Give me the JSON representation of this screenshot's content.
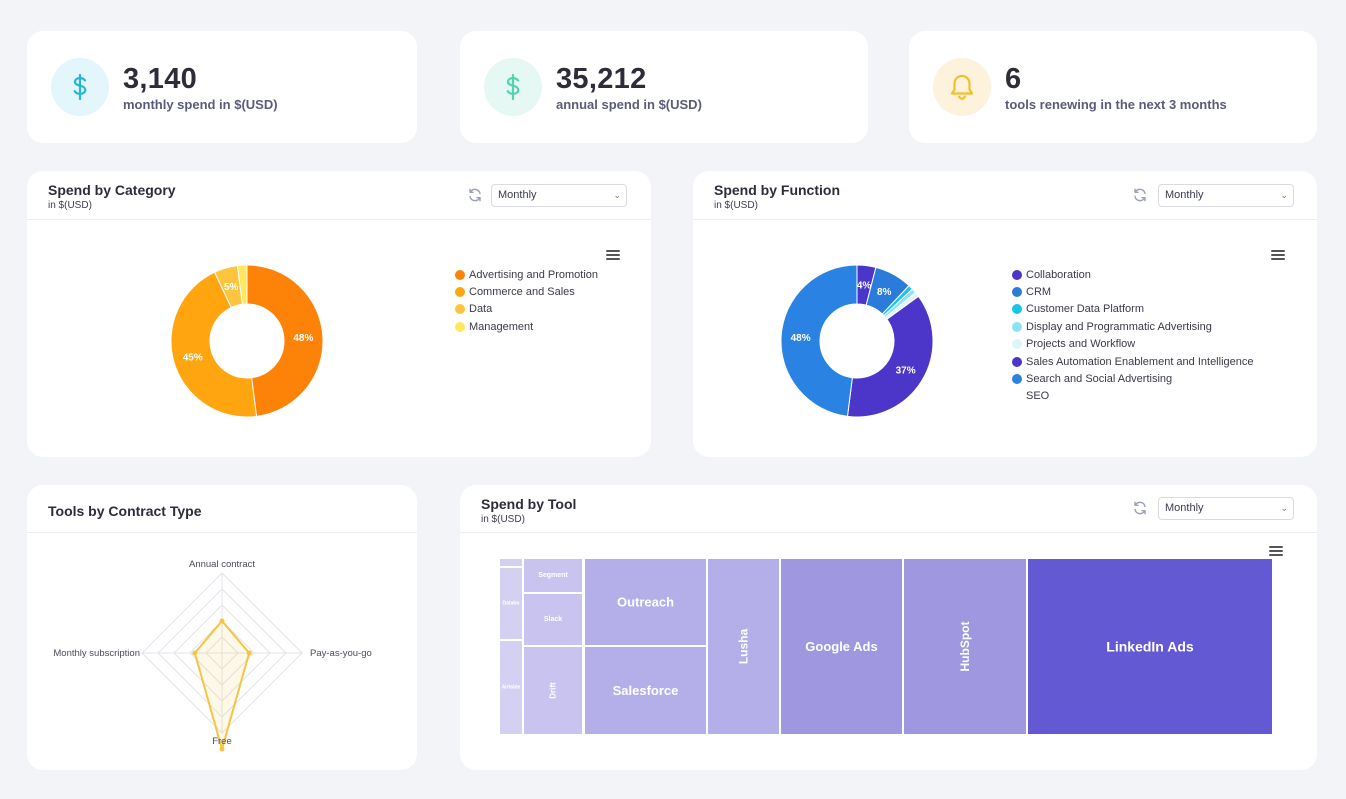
{
  "stats": [
    {
      "value": "3,140",
      "label": "monthly spend in $(USD)",
      "icon": "dollar-icon",
      "color": "#29b6d6",
      "bg": "#e3f6fb"
    },
    {
      "value": "35,212",
      "label": "annual spend in $(USD)",
      "icon": "dollar-icon",
      "color": "#55d2b0",
      "bg": "#e6f8f3"
    },
    {
      "value": "6",
      "label": "tools renewing in the next 3 months",
      "icon": "bell-icon",
      "color": "#f4bf2a",
      "bg": "#fdf3dc"
    }
  ],
  "category_card": {
    "title": "Spend by Category",
    "subtitle": "in $(USD)",
    "period": "Monthly",
    "chart_data": {
      "type": "pie",
      "variant": "donut",
      "slices": [
        {
          "label": "Advertising and Promotion",
          "value": 48,
          "color": "#fd8208",
          "data_label": "48%"
        },
        {
          "label": "Commerce and Sales",
          "value": 45,
          "color": "#ffa510",
          "data_label": "45%"
        },
        {
          "label": "Data",
          "value": 5,
          "color": "#ffc43e",
          "data_label": "5%"
        },
        {
          "label": "Management",
          "value": 2,
          "color": "#ffe85c",
          "data_label": ""
        }
      ]
    }
  },
  "function_card": {
    "title": "Spend by Function",
    "subtitle": "in $(USD)",
    "period": "Monthly",
    "chart_data": {
      "type": "pie",
      "variant": "donut",
      "slices": [
        {
          "label": "Collaboration",
          "value": 4,
          "color": "#4b36c9",
          "data_label": "4%"
        },
        {
          "label": "CRM",
          "value": 8,
          "color": "#2a7bda",
          "data_label": "8%"
        },
        {
          "label": "Customer Data Platform",
          "value": 1,
          "color": "#17c6e8",
          "data_label": ""
        },
        {
          "label": "Display and Programmatic Advertising",
          "value": 1,
          "color": "#8be3f5",
          "data_label": ""
        },
        {
          "label": "Projects and Workflow",
          "value": 1,
          "color": "#dff5fb",
          "data_label": ""
        },
        {
          "label": "Sales Automation Enablement and Intelligence",
          "value": 37,
          "color": "#4b36c9",
          "data_label": "37%"
        },
        {
          "label": "Search and Social Advertising",
          "value": 48,
          "color": "#2a83e2",
          "data_label": "48%"
        },
        {
          "label": "SEO",
          "value": 0,
          "color": "",
          "data_label": ""
        }
      ]
    }
  },
  "contract_card": {
    "title": "Tools by Contract Type",
    "chart_data": {
      "type": "radar",
      "axes": [
        "Annual contract",
        "Pay-as-you-go",
        "Free",
        "Monthly subscription"
      ],
      "values": [
        2,
        1.7,
        6,
        1.7
      ],
      "max": 5,
      "color": "#f4c442"
    }
  },
  "tool_card": {
    "title": "Spend by Tool",
    "subtitle": "in $(USD)",
    "period": "Monthly",
    "chart_data": {
      "type": "treemap",
      "items": [
        {
          "label": "LinkedIn Ads",
          "color": "#6359d3"
        },
        {
          "label": "HubSpot",
          "color": "#a097e1"
        },
        {
          "label": "Google Ads",
          "color": "#a097e1"
        },
        {
          "label": "Lusha",
          "color": "#b5afe9"
        },
        {
          "label": "Outreach",
          "color": "#b5afe9"
        },
        {
          "label": "Salesforce",
          "color": "#b5afe9"
        },
        {
          "label": "Segment",
          "color": "#c8c3ef"
        },
        {
          "label": "Slack",
          "color": "#c8c3ef"
        },
        {
          "label": "Drift",
          "color": "#c8c3ef"
        },
        {
          "label": "",
          "color": "#d4d0f2"
        },
        {
          "label": "Databo",
          "color": "#d4d0f2"
        },
        {
          "label": "Airtable",
          "color": "#d4d0f2"
        }
      ]
    }
  }
}
